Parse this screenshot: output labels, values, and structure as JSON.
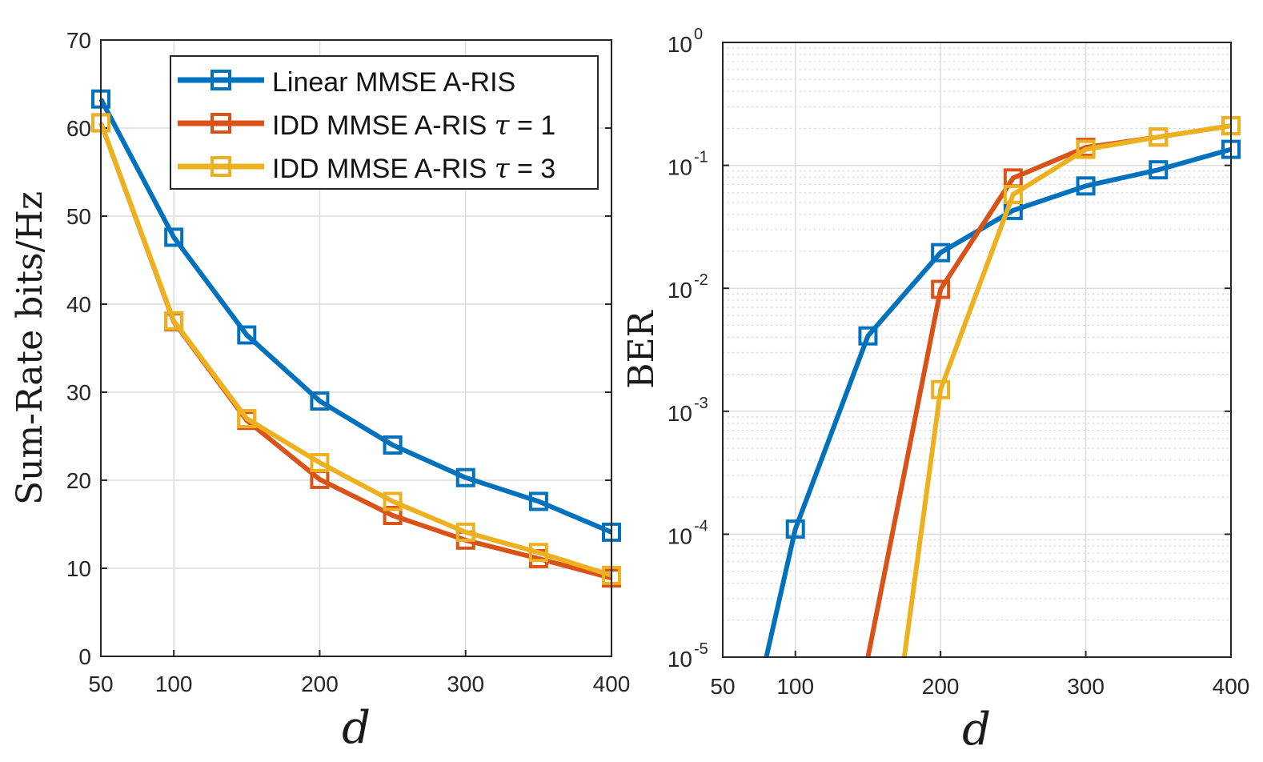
{
  "chart_data": [
    {
      "type": "line",
      "xlabel": "d",
      "ylabel": "Sum-Rate bits/Hz",
      "xlim": [
        50,
        400
      ],
      "ylim": [
        0,
        70
      ],
      "xticks": [
        50,
        100,
        200,
        300,
        400
      ],
      "yticks": [
        0,
        10,
        20,
        30,
        40,
        50,
        60,
        70
      ],
      "grid": true,
      "x": [
        50,
        100,
        150,
        200,
        250,
        300,
        350,
        400
      ],
      "legend": {
        "position": "top-right",
        "entries": [
          {
            "prefix": "Linear MMSE A-RIS",
            "tau": "",
            "value": ""
          },
          {
            "prefix": "IDD MMSE A-RIS",
            "tau": "τ",
            "value": "= 1"
          },
          {
            "prefix": "IDD MMSE A-RIS",
            "tau": "τ",
            "value": "= 3"
          }
        ]
      },
      "series": [
        {
          "name": "Linear MMSE A-RIS",
          "color": "#0072BD",
          "values": [
            63.3,
            47.6,
            36.5,
            29.0,
            24.0,
            20.3,
            17.6,
            14.1
          ]
        },
        {
          "name": "IDD MMSE A-RIS τ = 1",
          "color": "#D95319",
          "values": [
            60.6,
            38.0,
            26.8,
            20.1,
            16.0,
            13.2,
            11.1,
            8.9
          ]
        },
        {
          "name": "IDD MMSE A-RIS τ = 3",
          "color": "#EDB120",
          "values": [
            60.6,
            38.1,
            27.0,
            22.0,
            17.6,
            14.1,
            11.8,
            9.2
          ]
        }
      ]
    },
    {
      "type": "line",
      "yscale": "log",
      "xlabel": "d",
      "ylabel": "BER",
      "xlim": [
        50,
        400
      ],
      "ylim": [
        1e-05,
        1
      ],
      "xticks": [
        50,
        100,
        200,
        300,
        400
      ],
      "yticks": [
        {
          "value": 1e-05,
          "base": "10",
          "exp": "-5"
        },
        {
          "value": 0.0001,
          "base": "10",
          "exp": "-4"
        },
        {
          "value": 0.001,
          "base": "10",
          "exp": "-3"
        },
        {
          "value": 0.01,
          "base": "10",
          "exp": "-2"
        },
        {
          "value": 0.1,
          "base": "10",
          "exp": "-1"
        },
        {
          "value": 1,
          "base": "10",
          "exp": "0"
        }
      ],
      "grid": true,
      "series": [
        {
          "name": "Linear MMSE A-RIS",
          "color": "#0072BD",
          "x": [
            80,
            100,
            150,
            200,
            250,
            300,
            350,
            400
          ],
          "values": [
            1e-05,
            0.00011,
            0.0041,
            0.0195,
            0.043,
            0.068,
            0.092,
            0.135
          ],
          "markers": [
            false,
            true,
            true,
            true,
            true,
            true,
            true,
            true
          ]
        },
        {
          "name": "IDD MMSE A-RIS τ = 1",
          "color": "#D95319",
          "x": [
            150,
            200,
            250,
            300,
            350,
            400
          ],
          "values": [
            1e-05,
            0.0098,
            0.079,
            0.14,
            0.17,
            0.21
          ],
          "markers": [
            false,
            true,
            true,
            true,
            true,
            true
          ]
        },
        {
          "name": "IDD MMSE A-RIS τ = 3",
          "color": "#EDB120",
          "x": [
            175,
            200,
            250,
            300,
            350,
            400
          ],
          "values": [
            1e-05,
            0.0015,
            0.058,
            0.135,
            0.17,
            0.21
          ],
          "markers": [
            false,
            true,
            true,
            true,
            true,
            true
          ]
        }
      ]
    }
  ]
}
